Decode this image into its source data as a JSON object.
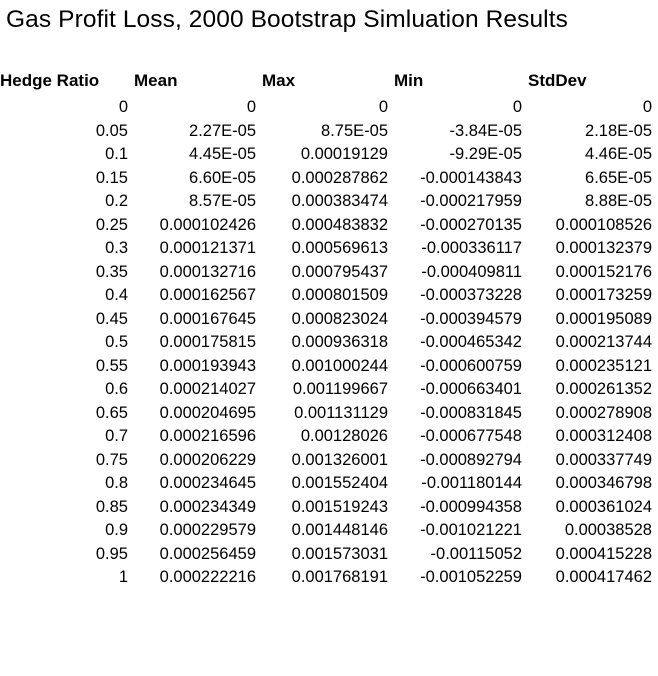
{
  "title": "Gas Profit Loss, 2000 Bootstrap Simluation Results",
  "table": {
    "headers": [
      "Hedge Ratio",
      "Mean",
      "Max",
      "Min",
      "StdDev"
    ],
    "rows": [
      [
        "0",
        "0",
        "0",
        "0",
        "0"
      ],
      [
        "0.05",
        "2.27E-05",
        "8.75E-05",
        "-3.84E-05",
        "2.18E-05"
      ],
      [
        "0.1",
        "4.45E-05",
        "0.00019129",
        "-9.29E-05",
        "4.46E-05"
      ],
      [
        "0.15",
        "6.60E-05",
        "0.000287862",
        "-0.000143843",
        "6.65E-05"
      ],
      [
        "0.2",
        "8.57E-05",
        "0.000383474",
        "-0.000217959",
        "8.88E-05"
      ],
      [
        "0.25",
        "0.000102426",
        "0.000483832",
        "-0.000270135",
        "0.000108526"
      ],
      [
        "0.3",
        "0.000121371",
        "0.000569613",
        "-0.000336117",
        "0.000132379"
      ],
      [
        "0.35",
        "0.000132716",
        "0.000795437",
        "-0.000409811",
        "0.000152176"
      ],
      [
        "0.4",
        "0.000162567",
        "0.000801509",
        "-0.000373228",
        "0.000173259"
      ],
      [
        "0.45",
        "0.000167645",
        "0.000823024",
        "-0.000394579",
        "0.000195089"
      ],
      [
        "0.5",
        "0.000175815",
        "0.000936318",
        "-0.000465342",
        "0.000213744"
      ],
      [
        "0.55",
        "0.000193943",
        "0.001000244",
        "-0.000600759",
        "0.000235121"
      ],
      [
        "0.6",
        "0.000214027",
        "0.001199667",
        "-0.000663401",
        "0.000261352"
      ],
      [
        "0.65",
        "0.000204695",
        "0.001131129",
        "-0.000831845",
        "0.000278908"
      ],
      [
        "0.7",
        "0.000216596",
        "0.00128026",
        "-0.000677548",
        "0.000312408"
      ],
      [
        "0.75",
        "0.000206229",
        "0.001326001",
        "-0.000892794",
        "0.000337749"
      ],
      [
        "0.8",
        "0.000234645",
        "0.001552404",
        "-0.001180144",
        "0.000346798"
      ],
      [
        "0.85",
        "0.000234349",
        "0.001519243",
        "-0.000994358",
        "0.000361024"
      ],
      [
        "0.9",
        "0.000229579",
        "0.001448146",
        "-0.001021221",
        "0.00038528"
      ],
      [
        "0.95",
        "0.000256459",
        "0.001573031",
        "-0.00115052",
        "0.000415228"
      ],
      [
        "1",
        "0.000222216",
        "0.001768191",
        "-0.001052259",
        "0.000417462"
      ]
    ]
  }
}
